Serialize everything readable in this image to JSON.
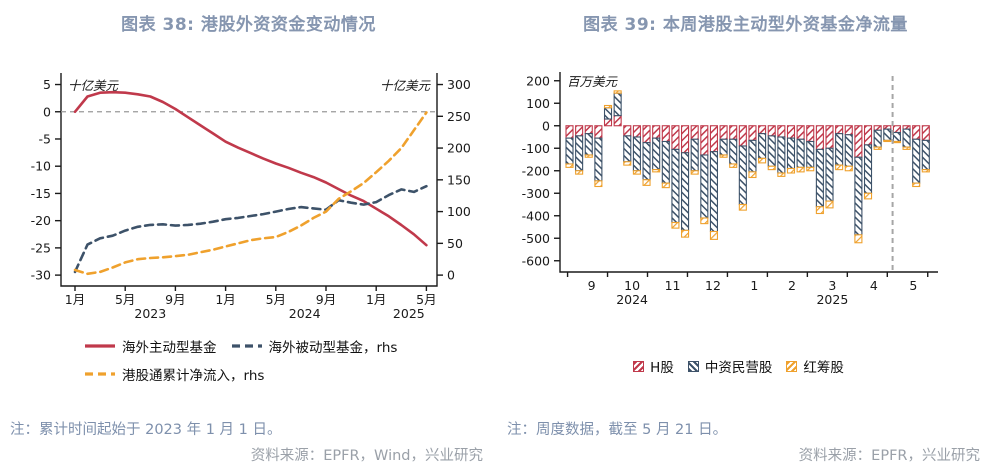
{
  "page": {
    "left": {
      "title": "图表 38: 港股外资资金变动情况",
      "note": "注：累计时间起始于 2023 年 1 月 1 日。",
      "source": "资料来源：EPFR，Wind，兴业研究"
    },
    "right": {
      "title": "图表 39: 本周港股主动型外资基金净流量",
      "note": "注：周度数据，截至 5 月 21 日。",
      "source": "资料来源：EPFR，兴业研究"
    },
    "colors": {
      "title": "#8696b0",
      "note": "#7e90ac",
      "source": "#9aa0a8",
      "red": "#c0394b",
      "navy": "#3d5269",
      "orange": "#efa12d",
      "axis": "#1a1a1a",
      "zero_dash": "#999999",
      "vline_dash": "#a6a6a6"
    }
  },
  "chart_data": [
    {
      "type": "line",
      "title": "港股外资资金变动情况",
      "unit_lhs": "十亿美元",
      "unit_rhs": "十亿美元",
      "lhs_range": [
        6.2,
        -32
      ],
      "lhs_ticks": [
        5,
        0,
        -5,
        -10,
        -15,
        -20,
        -25,
        -30
      ],
      "rhs_ticks": [
        300,
        250,
        200,
        150,
        100,
        50,
        0
      ],
      "rhs_scale_note": "rhs 0-300 maps onto lhs -30 to 5",
      "zero_line": 0,
      "x_ticks": [
        {
          "i": 0,
          "label": "1月"
        },
        {
          "i": 4,
          "label": "5月"
        },
        {
          "i": 8,
          "label": "9月"
        },
        {
          "i": 12,
          "label": "1月"
        },
        {
          "i": 16,
          "label": "5月"
        },
        {
          "i": 20,
          "label": "9月"
        },
        {
          "i": 24,
          "label": "1月"
        },
        {
          "i": 28,
          "label": "5月"
        }
      ],
      "year_labels": [
        {
          "i": 6,
          "label": "2023"
        },
        {
          "i": 18.3,
          "label": "2024"
        },
        {
          "i": 26.6,
          "label": "2025"
        }
      ],
      "series": [
        {
          "name": "海外主动型基金",
          "axis": "lhs",
          "style": "solid",
          "color": "#c0394b",
          "values": [
            0,
            2.8,
            3.5,
            3.6,
            3.5,
            3.2,
            2.8,
            1.8,
            0.5,
            -1.0,
            -2.5,
            -4.0,
            -5.5,
            -6.6,
            -7.6,
            -8.6,
            -9.5,
            -10.3,
            -11.2,
            -12.0,
            -13.0,
            -14.2,
            -15.4,
            -16.4,
            -17.8,
            -19.2,
            -20.8,
            -22.5,
            -24.5
          ]
        },
        {
          "name": "海外被动型基金，rhs",
          "axis": "rhs",
          "style": "dashed",
          "color": "#3d5269",
          "values": [
            5,
            48,
            58,
            62,
            70,
            76,
            79,
            80,
            78,
            79,
            81,
            84,
            88,
            90,
            93,
            96,
            100,
            104,
            107,
            105,
            103,
            118,
            114,
            111,
            115,
            126,
            135,
            131,
            140
          ]
        },
        {
          "name": "港股通累计净流入，rhs",
          "axis": "rhs",
          "style": "dashed",
          "color": "#efa12d",
          "values": [
            8,
            2,
            5,
            12,
            20,
            25,
            27,
            28,
            30,
            32,
            36,
            40,
            45,
            50,
            55,
            58,
            60,
            68,
            78,
            90,
            100,
            120,
            132,
            145,
            162,
            180,
            200,
            228,
            256
          ]
        }
      ],
      "legend_rows": [
        [
          0,
          1
        ],
        [
          2
        ]
      ]
    },
    {
      "type": "bar",
      "title": "本周港股主动型外资基金净流量",
      "unit": "百万美元",
      "y_range": [
        230,
        -650
      ],
      "y_ticks": [
        200,
        100,
        0,
        -100,
        -200,
        -300,
        -400,
        -500,
        -600
      ],
      "month_labels": [
        {
          "i": 2.3,
          "label": "9"
        },
        {
          "i": 6.5,
          "label": "10"
        },
        {
          "i": 10.7,
          "label": "11"
        },
        {
          "i": 14.9,
          "label": "12"
        },
        {
          "i": 19.2,
          "label": "1"
        },
        {
          "i": 23.1,
          "label": "2"
        },
        {
          "i": 27.3,
          "label": "3"
        },
        {
          "i": 31.6,
          "label": "4"
        },
        {
          "i": 35.7,
          "label": "5"
        }
      ],
      "boundary_ticks": [
        -0.2,
        3.95,
        8.1,
        12.25,
        16.4,
        20.55,
        24.7,
        28.85,
        33.0,
        37.2
      ],
      "year_labels": [
        {
          "i": 6.5,
          "label": "2024"
        },
        {
          "i": 27.3,
          "label": "2025"
        }
      ],
      "dashed_line_i": 33.55,
      "series": [
        {
          "name": "H股",
          "color": "#c0394b",
          "hatch": 45,
          "values": [
            -55,
            -45,
            -35,
            -55,
            30,
            45,
            -45,
            -50,
            -75,
            -55,
            -70,
            -105,
            -120,
            -60,
            -130,
            -115,
            -60,
            -60,
            -90,
            -65,
            -35,
            -45,
            -50,
            -55,
            -60,
            -70,
            -105,
            -100,
            -35,
            -40,
            -140,
            -85,
            -20,
            -15,
            -30,
            -15,
            -60,
            -65
          ]
        },
        {
          "name": "中资民营股",
          "color": "#3d5269",
          "hatch": -45,
          "values": [
            -115,
            -155,
            -95,
            -190,
            50,
            100,
            -115,
            -150,
            -165,
            -140,
            -185,
            -325,
            -345,
            -140,
            -280,
            -355,
            -70,
            -110,
            -260,
            -140,
            -110,
            -135,
            -160,
            -135,
            -125,
            -115,
            -255,
            -235,
            -140,
            -140,
            -345,
            -215,
            -75,
            -50,
            -40,
            -80,
            -195,
            -130
          ]
        },
        {
          "name": "红筹股",
          "color": "#efa12d",
          "hatch": 45,
          "values": [
            -15,
            -15,
            -10,
            -25,
            10,
            10,
            -15,
            -15,
            -25,
            -10,
            -20,
            -25,
            -30,
            -15,
            -25,
            -35,
            -10,
            -15,
            -25,
            -25,
            -20,
            -15,
            -15,
            -20,
            -20,
            -15,
            -30,
            -30,
            -20,
            -20,
            -35,
            -25,
            -10,
            -5,
            -5,
            -10,
            -15,
            -10
          ]
        }
      ]
    }
  ]
}
